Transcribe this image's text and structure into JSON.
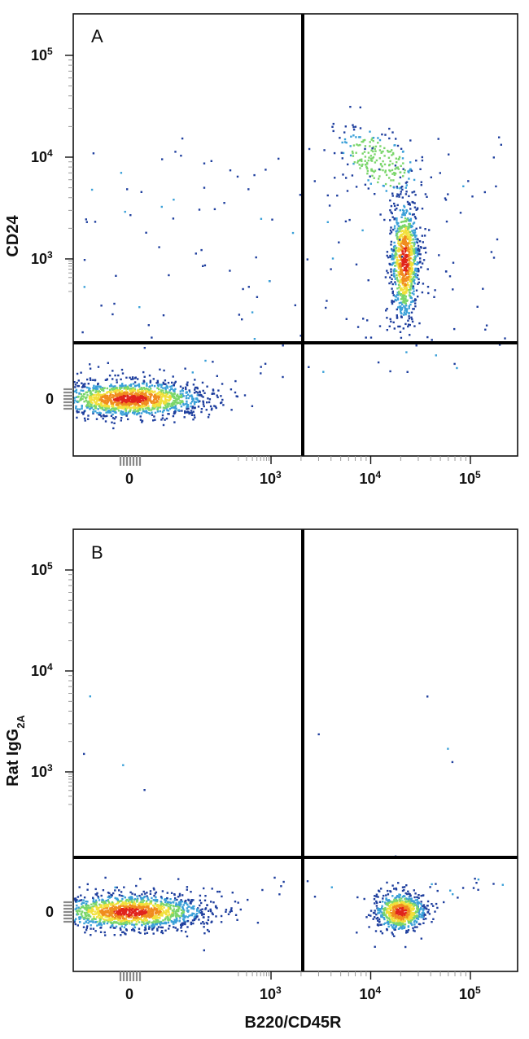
{
  "chart_data": [
    {
      "type": "scatter",
      "subtype": "flow-cytometry-density-plot",
      "panel": "A",
      "xlabel": "",
      "ylabel": "CD24",
      "x_scale": "biexponential",
      "y_scale": "biexponential",
      "x_ticks": [
        {
          "value": 0,
          "label": "0"
        },
        {
          "value": 1000,
          "label": "10",
          "exp": "3"
        },
        {
          "value": 10000,
          "label": "10",
          "exp": "4"
        },
        {
          "value": 100000,
          "label": "10",
          "exp": "5"
        }
      ],
      "y_ticks": [
        {
          "value": 0,
          "label": "0"
        },
        {
          "value": 1000,
          "label": "10",
          "exp": "3"
        },
        {
          "value": 10000,
          "label": "10",
          "exp": "4"
        },
        {
          "value": 100000,
          "label": "10",
          "exp": "5"
        }
      ],
      "quadrant_gate": {
        "x": 2000,
        "y": 150
      },
      "populations": [
        {
          "x_center": 0,
          "y_center": 0,
          "x_spread": 150,
          "y_spread": 40,
          "density": "high"
        },
        {
          "x_center": 22000,
          "y_center": 900,
          "x_spread": 5000,
          "y_spread": 600,
          "density": "high"
        },
        {
          "x_center": 12000,
          "y_center": 9000,
          "x_spread": 5000,
          "y_spread": 4000,
          "density": "medium"
        }
      ]
    },
    {
      "type": "scatter",
      "subtype": "flow-cytometry-density-plot",
      "panel": "B",
      "xlabel": "B220/CD45R",
      "ylabel": "Rat IgG",
      "ylabel_sub": "2A",
      "x_scale": "biexponential",
      "y_scale": "biexponential",
      "x_ticks": [
        {
          "value": 0,
          "label": "0"
        },
        {
          "value": 1000,
          "label": "10",
          "exp": "3"
        },
        {
          "value": 10000,
          "label": "10",
          "exp": "4"
        },
        {
          "value": 100000,
          "label": "10",
          "exp": "5"
        }
      ],
      "y_ticks": [
        {
          "value": 0,
          "label": "0"
        },
        {
          "value": 1000,
          "label": "10",
          "exp": "3"
        },
        {
          "value": 10000,
          "label": "10",
          "exp": "4"
        },
        {
          "value": 100000,
          "label": "10",
          "exp": "5"
        }
      ],
      "quadrant_gate": {
        "x": 2000,
        "y": 150
      },
      "populations": [
        {
          "x_center": 0,
          "y_center": 0,
          "x_spread": 150,
          "y_spread": 40,
          "density": "high"
        },
        {
          "x_center": 20000,
          "y_center": 0,
          "x_spread": 5000,
          "y_spread": 40,
          "density": "high"
        }
      ]
    }
  ],
  "colors": {
    "low": "#1f3f9e",
    "mid_low": "#3aa0d8",
    "mid": "#7bd66b",
    "mid_high": "#f2e03a",
    "high": "#f08c1e",
    "peak": "#e0241c",
    "frame": "#111111"
  }
}
